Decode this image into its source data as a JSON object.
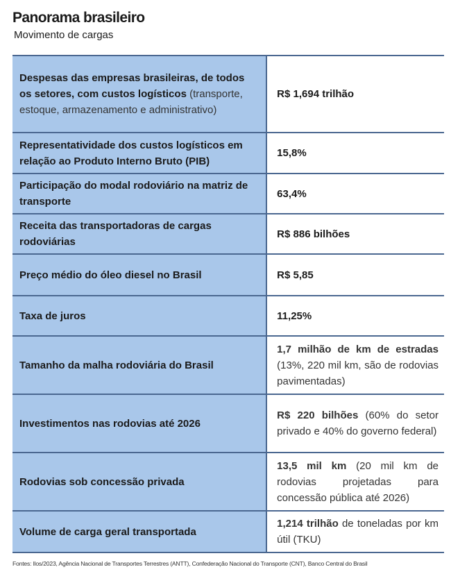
{
  "header": {
    "title": "Panorama brasileiro",
    "subtitle": "Movimento de cargas"
  },
  "table": {
    "rows": [
      {
        "item": "Despesas das empresas brasileiras, de todos os setores, com custos logísticos",
        "item_note": "(transporte, estoque, armazenamento e administrativo)",
        "value": "R$ 1,694 trilhão"
      },
      {
        "item": "Representatividade dos custos logísticos em relação ao Produto Interno Bruto (PIB)",
        "value": "15,8%"
      },
      {
        "item": "Participação do modal rodoviário na matriz de transporte",
        "value": "63,4%"
      },
      {
        "item": "Receita das transportadoras de cargas rodoviárias",
        "value": "R$ 886 bilhões"
      },
      {
        "item": "Preço médio do óleo diesel no Brasil",
        "value": "R$ 5,85"
      },
      {
        "item": "Taxa de juros",
        "value": "11,25%"
      },
      {
        "item": "Tamanho da malha rodoviária do Brasil",
        "value": "1,7 milhão de km de estradas",
        "value_note": "(13%, 220 mil km, são de rodovias pavimentadas)"
      },
      {
        "item": "Investimentos nas rodovias até 2026",
        "value": "R$ 220 bilhões",
        "value_note": "(60% do setor privado e 40% do governo federal)"
      },
      {
        "item": "Rodovias sob concessão privada",
        "value": "13,5 mil km",
        "value_note": "(20 mil km de rodovias projetadas para concessão pública até 2026)"
      },
      {
        "item": "Volume de carga geral transportada",
        "value": "1,214 trilhão",
        "value_note": "de toneladas por km útil (TKU)"
      }
    ]
  },
  "footer": "Fontes: Ilos/2023, Agência Nacional de Transportes Terrestres (ANTT), Confederação Nacional do Transporte (CNT), Banco Central do Brasil"
}
